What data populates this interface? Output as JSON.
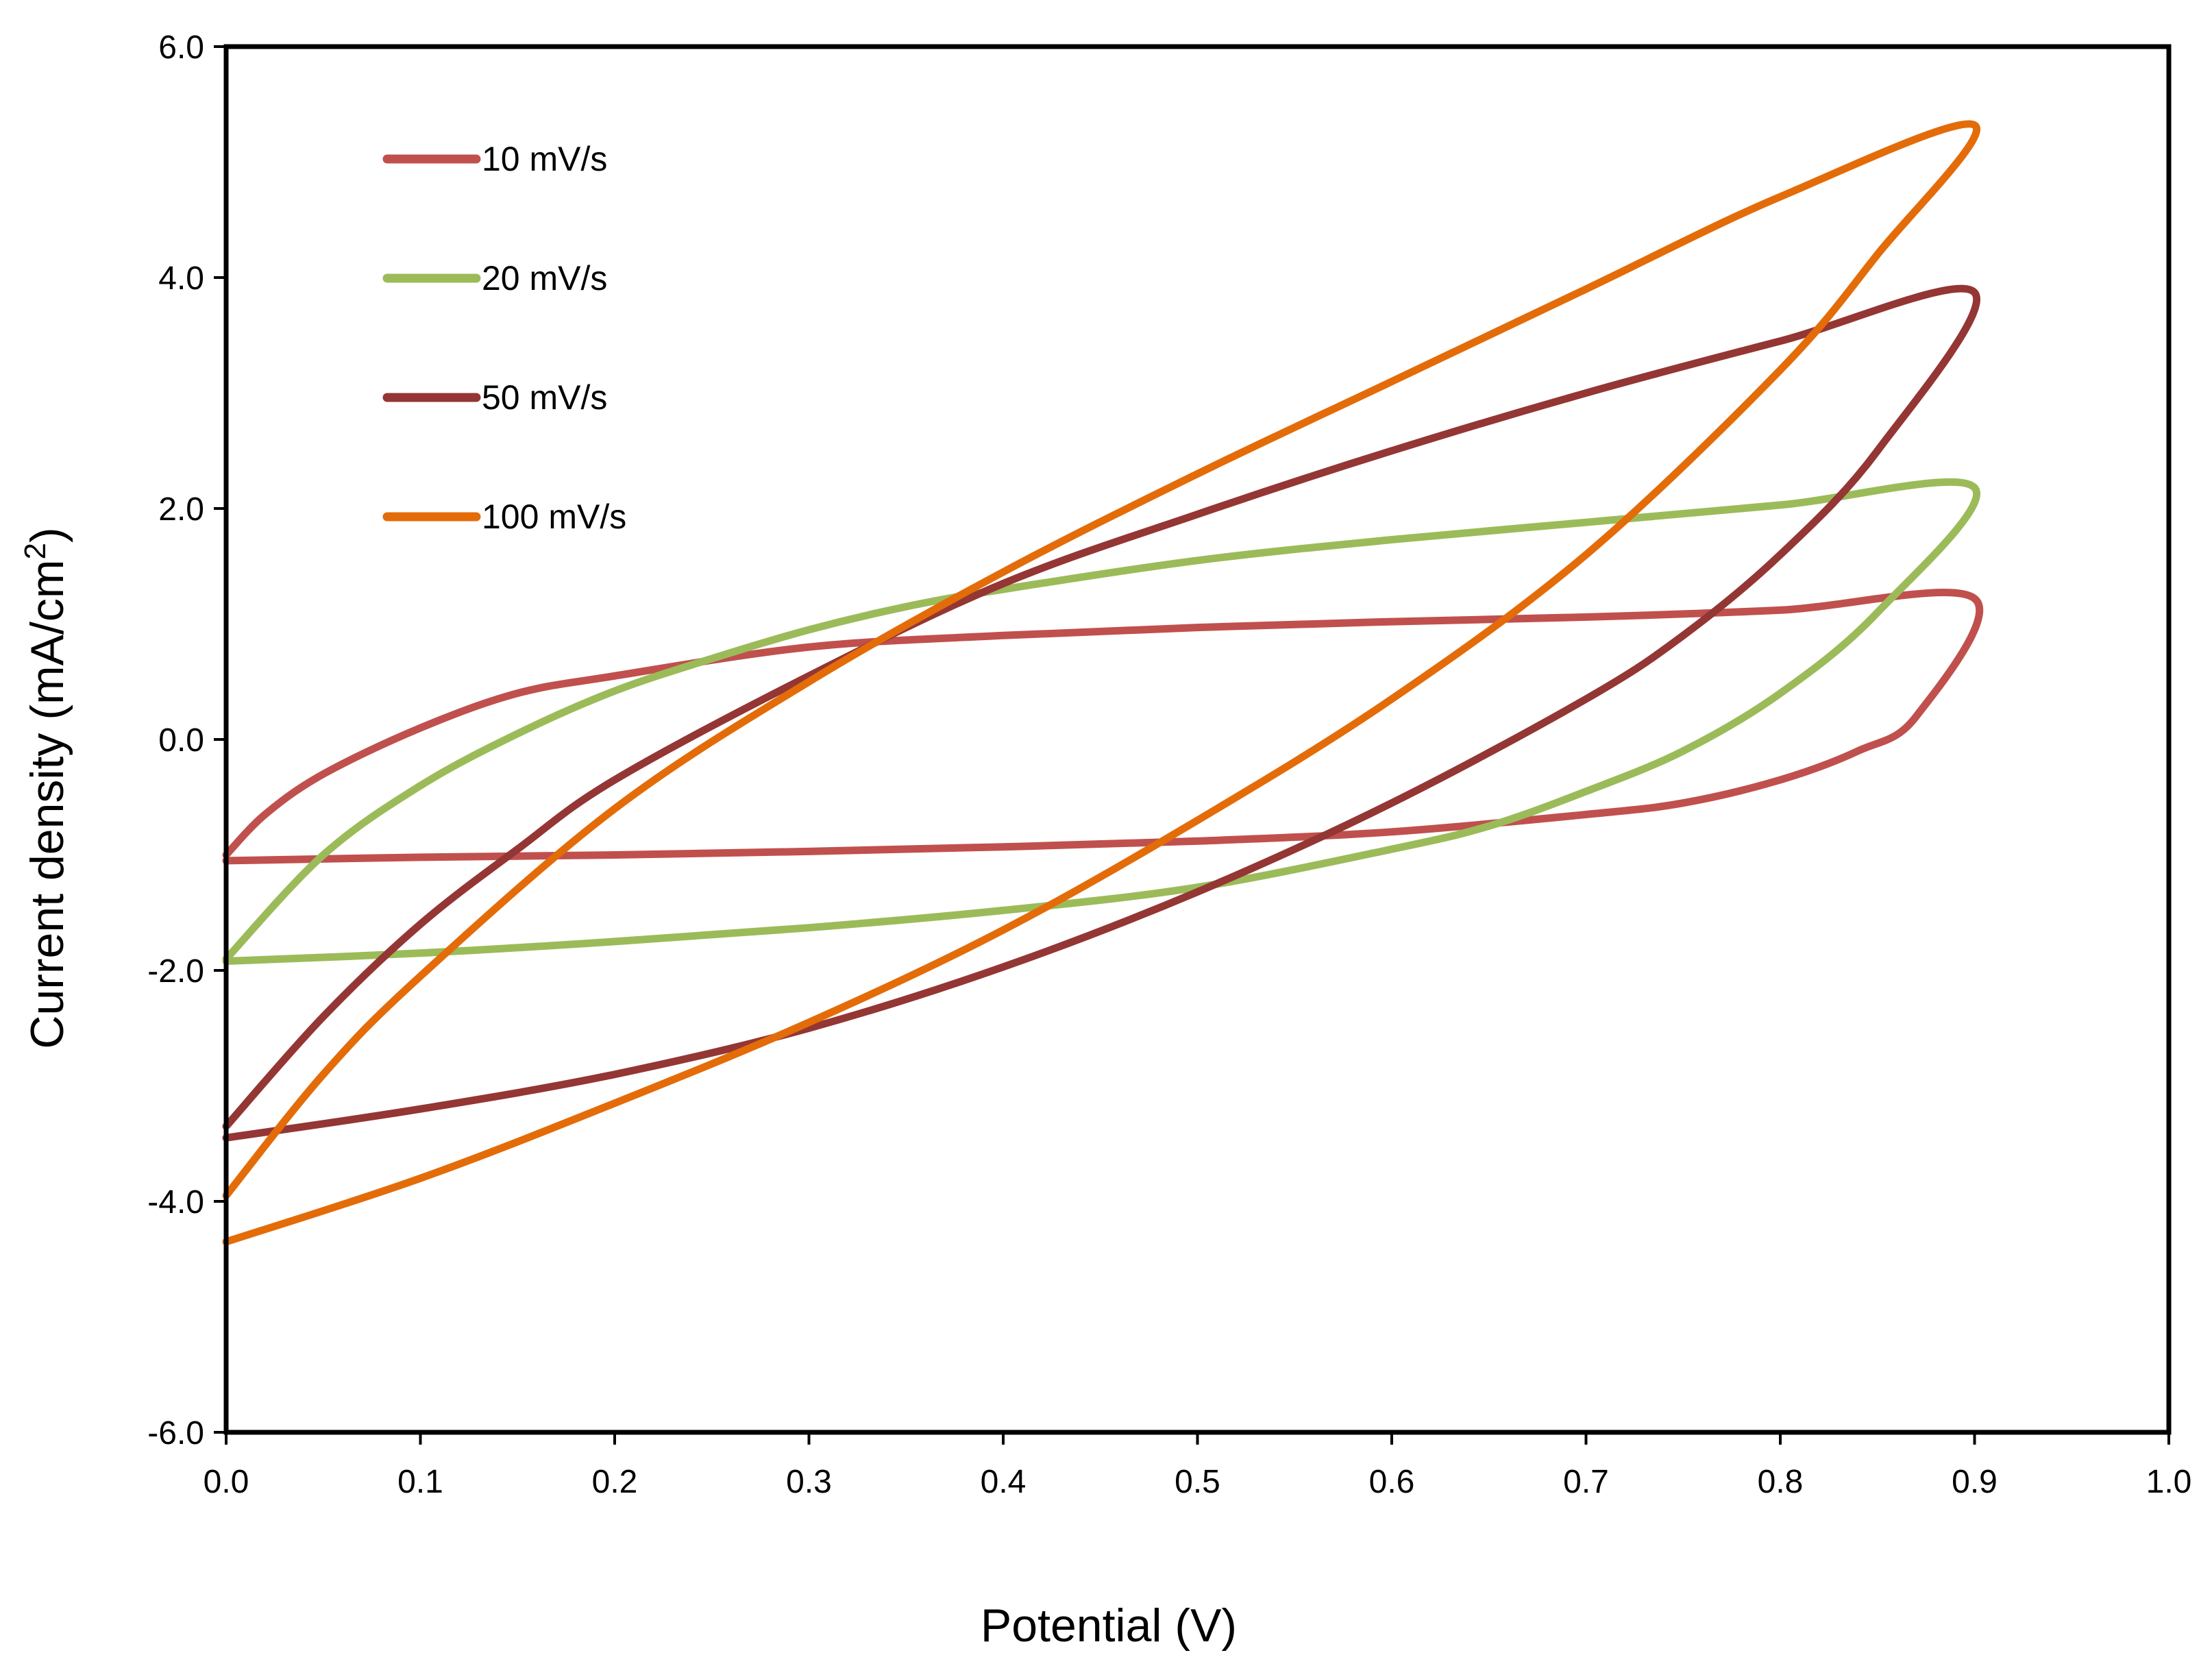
{
  "chart_data": {
    "type": "line",
    "xlabel": "Potential (V)",
    "ylabel_main": "Current density (mA/cm",
    "ylabel_sup": "2",
    "ylabel_close": ")",
    "xlim": [
      0.0,
      1.0
    ],
    "ylim": [
      -6.0,
      6.0
    ],
    "x_ticks": [
      "0.0",
      "0.1",
      "0.2",
      "0.3",
      "0.4",
      "0.5",
      "0.6",
      "0.7",
      "0.8",
      "0.9",
      "1.0"
    ],
    "y_ticks": [
      "-6.0",
      "-4.0",
      "-2.0",
      "0.0",
      "2.0",
      "4.0",
      "6.0"
    ],
    "grid": false,
    "legend_position": "top-left",
    "series": [
      {
        "name": "10 mV/s",
        "color": "#C0504D",
        "points": [
          [
            0.0,
            -1.05
          ],
          [
            0.1,
            -1.02
          ],
          [
            0.2,
            -1.0
          ],
          [
            0.3,
            -0.97
          ],
          [
            0.4,
            -0.93
          ],
          [
            0.5,
            -0.88
          ],
          [
            0.6,
            -0.8
          ],
          [
            0.7,
            -0.65
          ],
          [
            0.75,
            -0.55
          ],
          [
            0.8,
            -0.35
          ],
          [
            0.84,
            -0.1
          ],
          [
            0.87,
            0.2
          ],
          [
            0.9,
            1.22
          ],
          [
            0.8,
            1.12
          ],
          [
            0.7,
            1.06
          ],
          [
            0.6,
            1.02
          ],
          [
            0.5,
            0.97
          ],
          [
            0.4,
            0.9
          ],
          [
            0.3,
            0.8
          ],
          [
            0.2,
            0.55
          ],
          [
            0.15,
            0.4
          ],
          [
            0.1,
            0.1
          ],
          [
            0.05,
            -0.3
          ],
          [
            0.02,
            -0.65
          ],
          [
            0.0,
            -1.0
          ]
        ]
      },
      {
        "name": "20 mV/s",
        "color": "#9BBB59",
        "points": [
          [
            0.0,
            -1.92
          ],
          [
            0.1,
            -1.85
          ],
          [
            0.2,
            -1.75
          ],
          [
            0.3,
            -1.63
          ],
          [
            0.4,
            -1.48
          ],
          [
            0.5,
            -1.28
          ],
          [
            0.6,
            -0.95
          ],
          [
            0.65,
            -0.75
          ],
          [
            0.7,
            -0.45
          ],
          [
            0.75,
            -0.1
          ],
          [
            0.8,
            0.4
          ],
          [
            0.85,
            1.1
          ],
          [
            0.9,
            2.18
          ],
          [
            0.8,
            2.03
          ],
          [
            0.7,
            1.88
          ],
          [
            0.6,
            1.73
          ],
          [
            0.5,
            1.55
          ],
          [
            0.4,
            1.3
          ],
          [
            0.35,
            1.15
          ],
          [
            0.3,
            0.95
          ],
          [
            0.25,
            0.7
          ],
          [
            0.2,
            0.42
          ],
          [
            0.15,
            0.05
          ],
          [
            0.1,
            -0.4
          ],
          [
            0.05,
            -1.0
          ],
          [
            0.0,
            -1.9
          ]
        ]
      },
      {
        "name": "50 mV/s",
        "color": "#943634",
        "points": [
          [
            0.0,
            -3.45
          ],
          [
            0.1,
            -3.2
          ],
          [
            0.2,
            -2.9
          ],
          [
            0.3,
            -2.5
          ],
          [
            0.4,
            -1.97
          ],
          [
            0.5,
            -1.32
          ],
          [
            0.6,
            -0.55
          ],
          [
            0.7,
            0.35
          ],
          [
            0.75,
            0.9
          ],
          [
            0.8,
            1.6
          ],
          [
            0.85,
            2.5
          ],
          [
            0.9,
            3.87
          ],
          [
            0.8,
            3.45
          ],
          [
            0.7,
            3.0
          ],
          [
            0.6,
            2.5
          ],
          [
            0.5,
            1.95
          ],
          [
            0.4,
            1.35
          ],
          [
            0.3,
            0.55
          ],
          [
            0.2,
            -0.35
          ],
          [
            0.15,
            -0.95
          ],
          [
            0.1,
            -1.6
          ],
          [
            0.05,
            -2.4
          ],
          [
            0.0,
            -3.35
          ]
        ]
      },
      {
        "name": "100 mV/s",
        "color": "#E36C09",
        "points": [
          [
            0.0,
            -4.35
          ],
          [
            0.1,
            -3.8
          ],
          [
            0.2,
            -3.15
          ],
          [
            0.3,
            -2.45
          ],
          [
            0.4,
            -1.65
          ],
          [
            0.5,
            -0.7
          ],
          [
            0.6,
            0.35
          ],
          [
            0.7,
            1.6
          ],
          [
            0.8,
            3.2
          ],
          [
            0.85,
            4.2
          ],
          [
            0.9,
            5.32
          ],
          [
            0.8,
            4.7
          ],
          [
            0.7,
            3.9
          ],
          [
            0.6,
            3.1
          ],
          [
            0.5,
            2.3
          ],
          [
            0.4,
            1.45
          ],
          [
            0.3,
            0.5
          ],
          [
            0.2,
            -0.6
          ],
          [
            0.1,
            -2.05
          ],
          [
            0.05,
            -2.9
          ],
          [
            0.0,
            -3.95
          ]
        ]
      }
    ]
  }
}
